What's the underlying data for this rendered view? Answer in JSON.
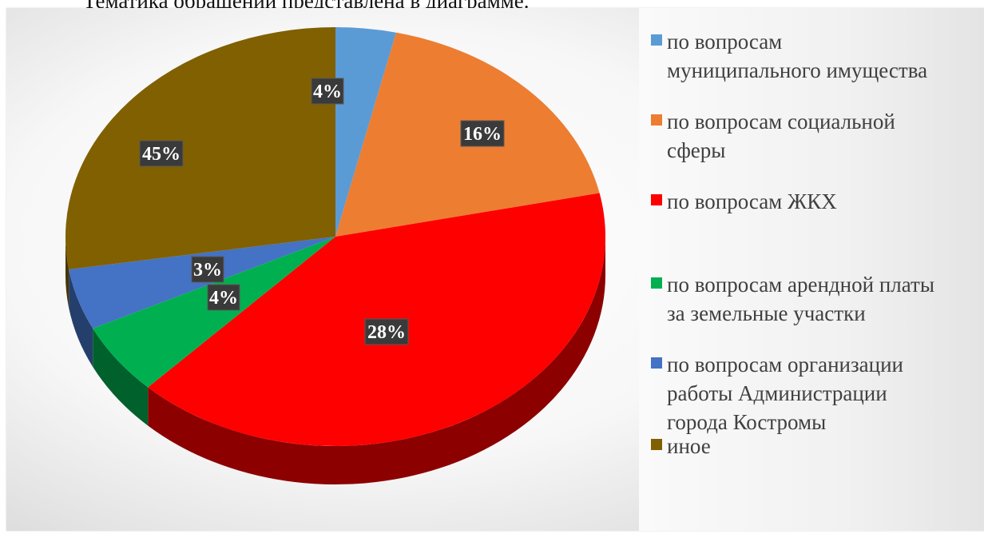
{
  "caption": "Тематика обращений представлена в диаграмме.",
  "chart_data": {
    "type": "pie",
    "title": "",
    "legend_position": "right",
    "slices": [
      {
        "label": "по вопросам муниципального имущества",
        "value": 4,
        "value_label": "4%",
        "color": "#5B9BD5"
      },
      {
        "label": "по вопросам социальной сферы",
        "value": 16,
        "value_label": "16%",
        "color": "#ED7D31"
      },
      {
        "label": "по вопросам ЖКХ",
        "value": 28,
        "value_label": "28%",
        "color": "#FF0000"
      },
      {
        "label": "по вопросам арендной платы за земельные участки",
        "value": 4,
        "value_label": "4%",
        "color": "#00B050"
      },
      {
        "label": "по вопросам организации работы Администрации города Костромы",
        "value": 3,
        "value_label": "3%",
        "color": "#4472C4"
      },
      {
        "label": "иное",
        "value": 45,
        "value_label": "45%",
        "color": "#806000"
      }
    ]
  },
  "legend": {
    "items": [
      {
        "text": "по вопросам\nмуниципального имущества",
        "color": "#5B9BD5"
      },
      {
        "text": "по вопросам социальной\nсферы",
        "color": "#ED7D31"
      },
      {
        "text": "по вопросам ЖКХ",
        "color": "#FF0000"
      },
      {
        "text": "по вопросам арендной платы\nза земельные участки",
        "color": "#00B050"
      },
      {
        "text": "по вопросам организации\nработы Администрации\nгорода Костромы",
        "color": "#4472C4"
      },
      {
        "text": "иное",
        "color": "#806000"
      }
    ]
  }
}
